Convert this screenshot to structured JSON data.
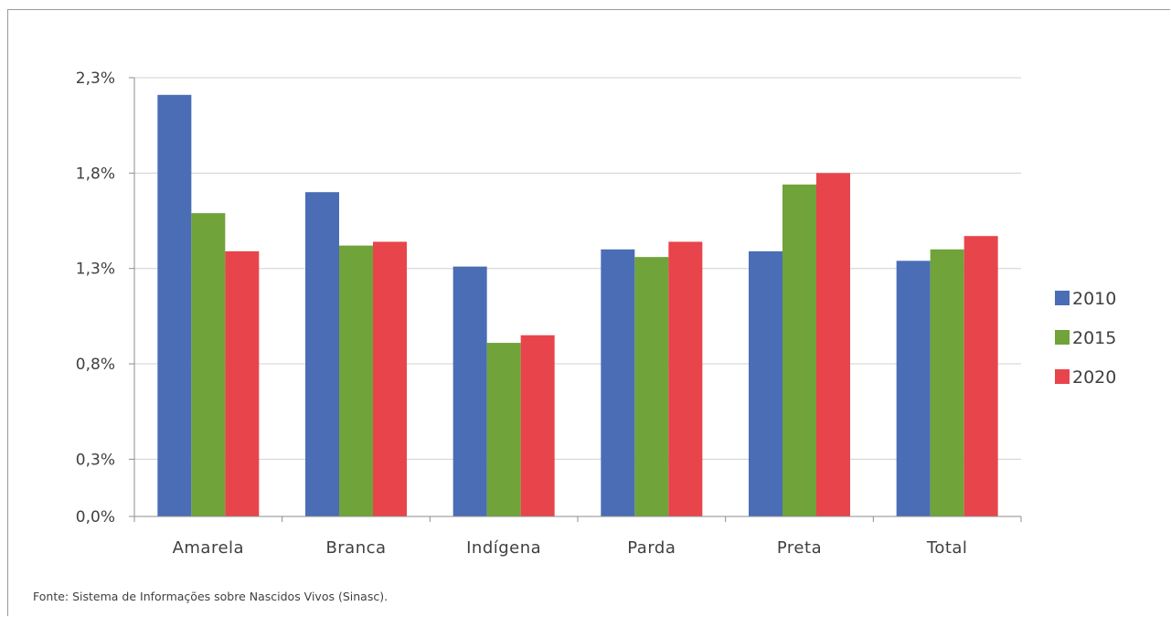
{
  "source_note": "Fonte: Sistema de Informações sobre Nascidos Vivos (Sinasc).",
  "chart_data": {
    "type": "bar",
    "title": "",
    "xlabel": "",
    "ylabel": "",
    "categories": [
      "Amarela",
      "Branca",
      "Indígena",
      "Parda",
      "Preta",
      "Total"
    ],
    "series": [
      {
        "name": "2010",
        "color": "#4a6db5",
        "values": [
          2.21,
          1.7,
          1.31,
          1.4,
          1.39,
          1.34
        ]
      },
      {
        "name": "2015",
        "color": "#70a33a",
        "values": [
          1.59,
          1.42,
          0.91,
          1.36,
          1.74,
          1.4
        ]
      },
      {
        "name": "2020",
        "color": "#e8444b",
        "values": [
          1.39,
          1.44,
          0.95,
          1.44,
          1.8,
          1.47
        ]
      }
    ],
    "ylim": [
      0.0,
      2.3
    ],
    "yticks": [
      0.0,
      0.3,
      0.8,
      1.3,
      1.8,
      2.3
    ],
    "ytick_labels": [
      "0,0%",
      "0,3%",
      "0,8%",
      "1,3%",
      "1,8%",
      "2,3%"
    ],
    "grid": true,
    "legend_position": "right"
  }
}
